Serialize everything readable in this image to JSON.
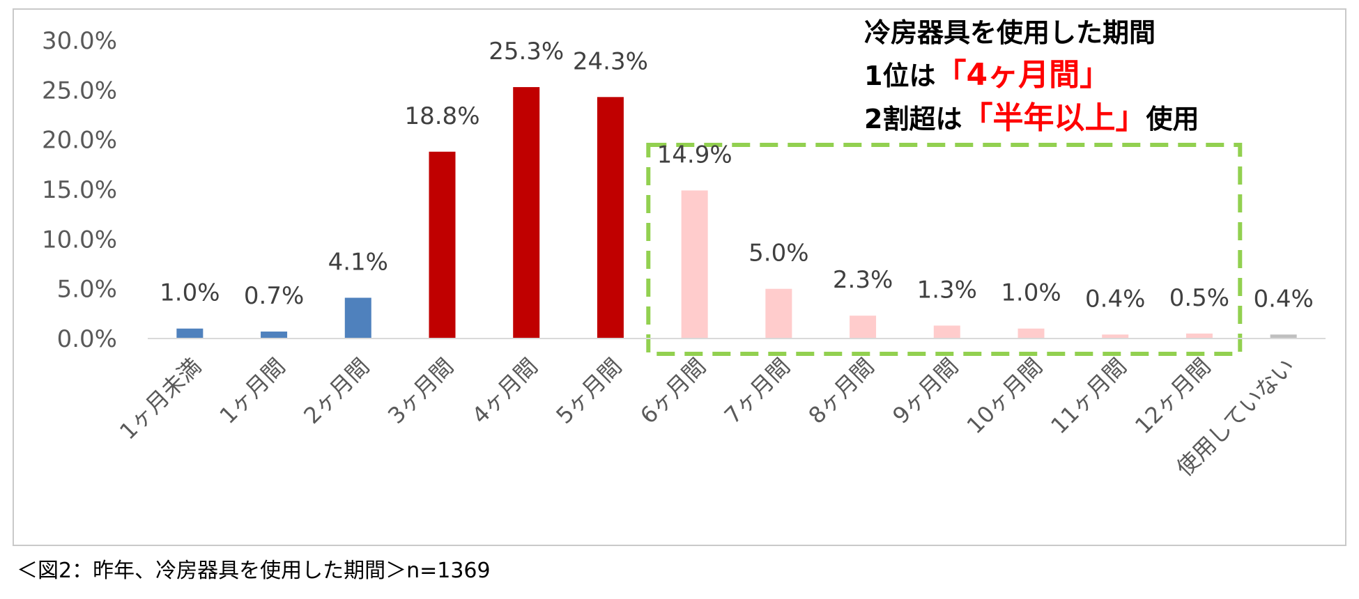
{
  "chart_data": {
    "type": "bar",
    "categories": [
      "1ヶ月未満",
      "1ヶ月間",
      "2ヶ月間",
      "3ヶ月間",
      "4ヶ月間",
      "5ヶ月間",
      "6ヶ月間",
      "7ヶ月間",
      "8ヶ月間",
      "9ヶ月間",
      "10ヶ月間",
      "11ヶ月間",
      "12ヶ月間",
      "使用していない"
    ],
    "values": [
      1.0,
      0.7,
      4.1,
      18.8,
      25.3,
      24.3,
      14.9,
      5.0,
      2.3,
      1.3,
      1.0,
      0.4,
      0.5,
      0.4
    ],
    "data_labels": [
      "1.0%",
      "0.7%",
      "4.1%",
      "18.8%",
      "25.3%",
      "24.3%",
      "14.9%",
      "5.0%",
      "2.3%",
      "1.3%",
      "1.0%",
      "0.4%",
      "0.5%",
      "0.4%"
    ],
    "bar_colors": [
      "#4f81bd",
      "#4f81bd",
      "#4f81bd",
      "#c00000",
      "#c00000",
      "#c00000",
      "#ffcccc",
      "#ffcccc",
      "#ffcccc",
      "#ffcccc",
      "#ffcccc",
      "#ffcccc",
      "#ffcccc",
      "#bfbfbf"
    ],
    "yticks": [
      0,
      5,
      10,
      15,
      20,
      25,
      30
    ],
    "ytick_labels": [
      "0.0%",
      "5.0%",
      "10.0%",
      "15.0%",
      "20.0%",
      "25.0%",
      "30.0%"
    ],
    "ylim": [
      0,
      30
    ],
    "grid": false,
    "highlight_box_color": "#92d050"
  },
  "annotation": {
    "line1": "冷房器具を使用した期間",
    "line2_prefix": "1位は",
    "line2_highlight": "「4ヶ月間」",
    "line3_prefix": "2割超は",
    "line3_highlight": "「半年以上」",
    "line3_suffix": "使用",
    "highlight_color": "#ff0000"
  },
  "caption": "＜図2：昨年、冷房器具を使用した期間＞n=1369"
}
